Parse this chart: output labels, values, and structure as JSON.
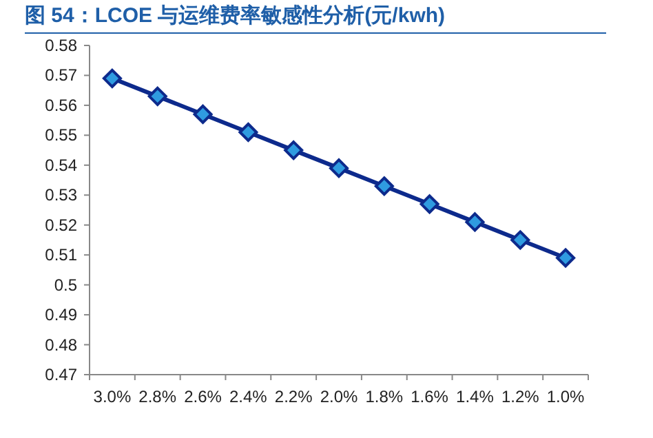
{
  "chart_data": {
    "type": "line",
    "title": "图 54：LCOE 与运维费率敏感性分析(元/kwh)",
    "categories": [
      "3.0%",
      "2.8%",
      "2.6%",
      "2.4%",
      "2.2%",
      "2.0%",
      "1.8%",
      "1.6%",
      "1.4%",
      "1.2%",
      "1.0%"
    ],
    "series": [
      {
        "color": "#0d2a8c",
        "values": [
          0.569,
          0.563,
          0.557,
          0.551,
          0.545,
          0.539,
          0.533,
          0.527,
          0.521,
          0.515,
          0.509
        ]
      }
    ],
    "ylim": [
      0.47,
      0.58
    ],
    "yticks": [
      0.47,
      0.48,
      0.49,
      0.5,
      0.51,
      0.52,
      0.53,
      0.54,
      0.55,
      0.56,
      0.57,
      0.58
    ],
    "marker": "diamond"
  }
}
